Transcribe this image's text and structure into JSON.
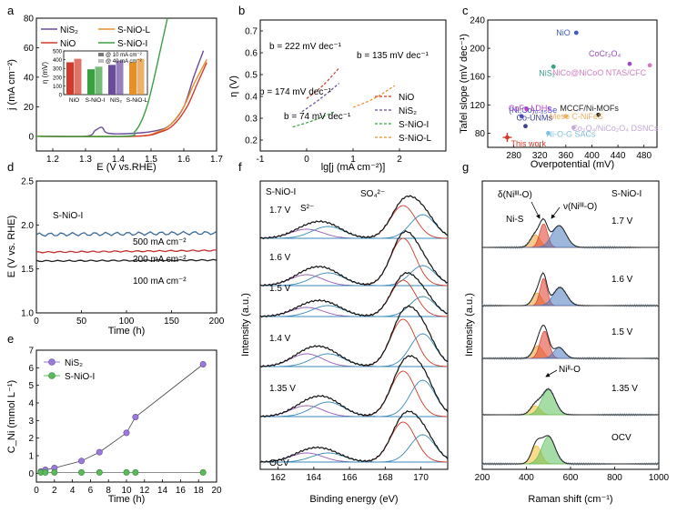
{
  "chart_data": [
    {
      "panel": "a",
      "type": "line",
      "xlabel": "E (V vs.RHE)",
      "ylabel": "j (mA cm⁻²)",
      "xlim": [
        1.15,
        1.7
      ],
      "ylim": [
        -10,
        80
      ],
      "xticks": [
        1.2,
        1.3,
        1.4,
        1.5,
        1.6,
        1.7
      ],
      "yticks": [
        0,
        20,
        40,
        60,
        80
      ],
      "legend": [
        "NiS₂",
        "S-NiO-L",
        "NiO",
        "S-NiO-I"
      ],
      "series": [
        {
          "name": "NiS₂",
          "color": "#6a4c9c",
          "x": [
            1.15,
            1.3,
            1.33,
            1.35,
            1.37,
            1.45,
            1.52,
            1.56,
            1.6,
            1.63,
            1.66
          ],
          "y": [
            0,
            0,
            4,
            6,
            2,
            2,
            4,
            8,
            20,
            40,
            58
          ]
        },
        {
          "name": "S-NiO-L",
          "color": "#e6902a",
          "x": [
            1.15,
            1.45,
            1.52,
            1.56,
            1.6,
            1.63,
            1.67
          ],
          "y": [
            0,
            0,
            3,
            8,
            20,
            35,
            52
          ]
        },
        {
          "name": "NiO",
          "color": "#d23a2a",
          "x": [
            1.15,
            1.45,
            1.53,
            1.57,
            1.61,
            1.64,
            1.67
          ],
          "y": [
            0,
            0,
            3,
            8,
            20,
            35,
            50
          ]
        },
        {
          "name": "S-NiO-I",
          "color": "#3aa040",
          "x": [
            1.15,
            1.42,
            1.45,
            1.47,
            1.49,
            1.51,
            1.53,
            1.55
          ],
          "y": [
            0,
            0,
            3,
            10,
            22,
            40,
            60,
            80
          ]
        }
      ],
      "inset": {
        "type": "bar",
        "ylabel": "η (mV)",
        "ylim": [
          0,
          500
        ],
        "yticks": [
          0,
          100,
          200,
          300,
          400,
          500
        ],
        "categories": [
          "NiO",
          "S-NiO-I",
          "NiS₂",
          "S-NiO-L"
        ],
        "legend": [
          "@ 10 mA cm⁻²",
          "@ 40 mA cm⁻²"
        ],
        "series": [
          {
            "name": "@ 10 mA cm⁻²",
            "values": [
              370,
              290,
              340,
              370
            ]
          },
          {
            "name": "@ 40 mA cm⁻²",
            "values": [
              410,
              320,
              390,
              410
            ]
          }
        ],
        "colors": [
          "#d23a2a",
          "#3aa040",
          "#6a4c9c",
          "#e6902a"
        ]
      }
    },
    {
      "panel": "b",
      "type": "line",
      "xlabel": "lg[j (mA cm⁻²)]",
      "ylabel": "η (V)",
      "xlim": [
        -1,
        3
      ],
      "ylim": [
        0.15,
        0.75
      ],
      "xticks": [
        -1,
        0,
        1,
        2
      ],
      "yticks": [
        0.2,
        0.3,
        0.4,
        0.5,
        0.6,
        0.7
      ],
      "annotations": [
        "b = 222 mV dec⁻¹",
        "b = 135 mV dec⁻¹",
        "b = 174 mV dec⁻¹",
        "b = 74 mV dec⁻¹"
      ],
      "legend": [
        "NiO",
        "NiS₂",
        "S-NiO-I",
        "S-NiO-L"
      ],
      "series": [
        {
          "name": "NiO",
          "color": "#d23a2a",
          "x": [
            0.0,
            0.35,
            0.7
          ],
          "y": [
            0.39,
            0.45,
            0.53
          ]
        },
        {
          "name": "NiS₂",
          "color": "#6a4c9c",
          "x": [
            -0.1,
            0.3,
            0.7
          ],
          "y": [
            0.33,
            0.39,
            0.46
          ]
        },
        {
          "name": "S-NiO-I",
          "color": "#3aa040",
          "x": [
            -0.3,
            0.15,
            0.6
          ],
          "y": [
            0.26,
            0.29,
            0.33
          ]
        },
        {
          "name": "S-NiO-L",
          "color": "#e6902a",
          "x": [
            1.0,
            1.45,
            1.9
          ],
          "y": [
            0.35,
            0.39,
            0.45
          ]
        }
      ]
    },
    {
      "panel": "c",
      "type": "scatter",
      "xlabel": "Overpotential (mV)",
      "ylabel": "Tafel slope (mV dec⁻¹)",
      "xlim": [
        240,
        500
      ],
      "ylim": [
        60,
        240
      ],
      "xticks": [
        280,
        320,
        360,
        400,
        440,
        480
      ],
      "yticks": [
        80,
        120,
        160,
        200,
        240
      ],
      "points": [
        {
          "label": "NiO",
          "x": 376,
          "y": 222,
          "color": "#3b5bc8"
        },
        {
          "label": "CoCr₂O₄",
          "x": 458,
          "y": 178,
          "color": "#9a4fc0"
        },
        {
          "label": "NiS₂",
          "x": 341,
          "y": 174,
          "color": "#3aa08a"
        },
        {
          "label": "NiCo@NiCoO NTAS/CFC",
          "x": 489,
          "y": 176,
          "color": "#d080c0"
        },
        {
          "label": "CoFe LDHs",
          "x": 300,
          "y": 114,
          "color": "#c040d0"
        },
        {
          "label": "(Ni,Co)₀.₈₅Se",
          "x": 292,
          "y": 104,
          "color": "#5050d0"
        },
        {
          "label": "MCCF/Ni-MOFs",
          "x": 410,
          "y": 106,
          "color": "#202020"
        },
        {
          "label": "Meso C-NiFeS",
          "x": 360,
          "y": 104,
          "color": "#f0b060"
        },
        {
          "label": "Co-UNMs",
          "x": 298,
          "y": 90,
          "color": "#404090"
        },
        {
          "label": "Co₃O₄/NiCo₂O₄ DSNCs",
          "x": 372,
          "y": 88,
          "color": "#c8a8d8"
        },
        {
          "label": "Ni-O-G SACs",
          "x": 333,
          "y": 80,
          "color": "#80c0e0"
        },
        {
          "label": "This work",
          "x": 270,
          "y": 74,
          "color": "#d23a2a"
        }
      ]
    },
    {
      "panel": "d",
      "type": "line",
      "xlabel": "Time (h)",
      "ylabel": "E (V vs. RHE)",
      "xlim": [
        0,
        200
      ],
      "ylim": [
        1.0,
        2.5
      ],
      "xticks": [
        0,
        50,
        100,
        150,
        200
      ],
      "yticks": [
        1.0,
        1.5,
        2.0,
        2.5
      ],
      "title_label": "S-NiO-I",
      "series": [
        {
          "name": "500 mA cm⁻²",
          "color": "#3a6a9a",
          "x": [
            0,
            200
          ],
          "y": [
            1.89,
            1.91
          ]
        },
        {
          "name": "200 mA cm⁻²",
          "color": "#c03030",
          "x": [
            0,
            200
          ],
          "y": [
            1.69,
            1.71
          ]
        },
        {
          "name": "100 mA cm⁻²",
          "color": "#202020",
          "x": [
            0,
            200
          ],
          "y": [
            1.59,
            1.6
          ]
        }
      ]
    },
    {
      "panel": "e",
      "type": "line",
      "xlabel": "Time (h)",
      "ylabel": "C_Ni (mmol L⁻¹)",
      "xlim": [
        0,
        20
      ],
      "ylim": [
        -0.5,
        7
      ],
      "xticks": [
        0,
        2,
        4,
        6,
        8,
        10,
        12,
        14,
        16,
        18,
        20
      ],
      "yticks": [
        0,
        1,
        2,
        3,
        4,
        5,
        6,
        7
      ],
      "legend": [
        "NiS₂",
        "S-NiO-I"
      ],
      "series": [
        {
          "name": "NiS₂",
          "color": "#9a7ad8",
          "x": [
            0.5,
            1,
            2,
            5,
            7,
            10,
            11,
            18.5
          ],
          "y": [
            0.1,
            0.2,
            0.3,
            0.7,
            1.2,
            2.3,
            3.2,
            6.2
          ]
        },
        {
          "name": "S-NiO-I",
          "color": "#5cb85c",
          "x": [
            0.5,
            1,
            2,
            5,
            7,
            10,
            11,
            18.5
          ],
          "y": [
            0.05,
            0.05,
            0.05,
            0.05,
            0.05,
            0.05,
            0.05,
            0.05
          ]
        }
      ]
    },
    {
      "panel": "f",
      "type": "line",
      "xlabel": "Binding energy (eV)",
      "ylabel": "Intensity (a.u.)",
      "xlim": [
        161,
        171.5
      ],
      "xticks": [
        162,
        164,
        166,
        168,
        170
      ],
      "sample_label": "S-NiO-I",
      "peak_labels": [
        "S²⁻",
        "SO₄²⁻"
      ],
      "traces": [
        "1.7 V",
        "1.6 V",
        "1.5 V",
        "1.4 V",
        "1.35 V",
        "OCV"
      ]
    },
    {
      "panel": "g",
      "type": "line",
      "xlabel": "Raman shift (cm⁻¹)",
      "ylabel": "Intensity (a.u.)",
      "xlim": [
        200,
        1000
      ],
      "xticks": [
        200,
        400,
        600,
        800,
        1000
      ],
      "sample_label": "S-NiO-I",
      "peak_labels": [
        "δ(Niᴵᴵᴵ-O)",
        "ν(Niᴵᴵᴵ-O)",
        "Ni-S",
        "Niᴵᴵ-O"
      ],
      "traces": [
        "1.7 V",
        "1.6 V",
        "1.5 V",
        "1.35 V",
        "OCV"
      ]
    }
  ],
  "panel_letters": [
    "a",
    "b",
    "c",
    "d",
    "e",
    "f",
    "g"
  ]
}
